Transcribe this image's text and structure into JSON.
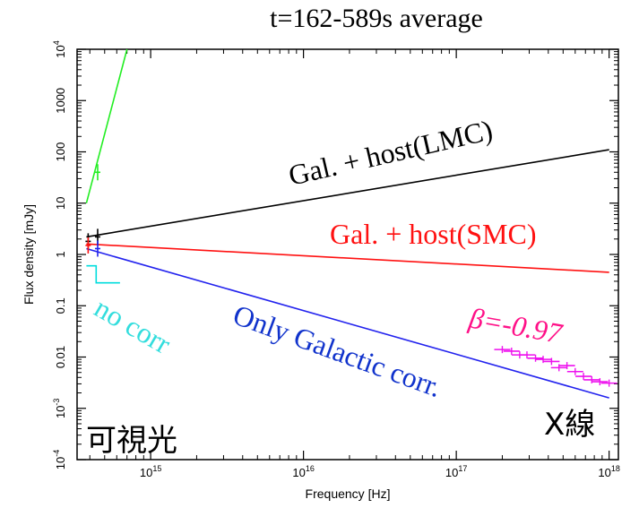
{
  "chart_data": {
    "type": "line",
    "title": "t=162-589s average",
    "xlabel": "Frequency [Hz]",
    "ylabel": "Flux density [mJy]",
    "xscale": "log",
    "yscale": "log",
    "xlim": [
      330000000000000.0,
      1.15e+18
    ],
    "ylim": [
      0.0001,
      10000
    ],
    "x_ticks": [
      {
        "value": 1000000000000000.0,
        "base": "10",
        "exp": "15"
      },
      {
        "value": 1e+16,
        "base": "10",
        "exp": "16"
      },
      {
        "value": 1e+17,
        "base": "10",
        "exp": "17"
      },
      {
        "value": 1e+18,
        "base": "10",
        "exp": "18"
      }
    ],
    "y_ticks": [
      {
        "value": 0.0001,
        "base": "10",
        "exp": "-4"
      },
      {
        "value": 0.001,
        "base": "10",
        "exp": "-3"
      },
      {
        "value": 0.01,
        "label": "0.01"
      },
      {
        "value": 0.1,
        "label": "0.1"
      },
      {
        "value": 1,
        "label": "1"
      },
      {
        "value": 10,
        "label": "10"
      },
      {
        "value": 100,
        "label": "100"
      },
      {
        "value": 1000,
        "label": "1000"
      },
      {
        "value": 10000,
        "base": "10",
        "exp": "4"
      }
    ],
    "series": [
      {
        "color": "#22ee22",
        "x": [
          380000000000000.0,
          700000000000000.0
        ],
        "y": [
          10,
          10000
        ]
      },
      {
        "color": "#000000",
        "x": [
          380000000000000.0,
          1e+18
        ],
        "y": [
          2.2,
          110
        ]
      },
      {
        "color": "#ff1111",
        "x": [
          380000000000000.0,
          1e+18
        ],
        "y": [
          1.6,
          0.45
        ]
      },
      {
        "color": "#2222ee",
        "x": [
          380000000000000.0,
          1e+18
        ],
        "y": [
          1.3,
          0.0016
        ]
      },
      {
        "color": "#00dddd",
        "x": [
          380000000000000.0,
          440000000000000.0,
          440000000000000.0,
          630000000000000.0
        ],
        "y": [
          0.6,
          0.6,
          0.28,
          0.28
        ]
      }
    ],
    "optical_points": [
      {
        "x": 390000000000000.0,
        "y": 1.8,
        "color": "#000000"
      },
      {
        "x": 450000000000000.0,
        "y": 2.2,
        "color": "#000000"
      },
      {
        "x": 450000000000000.0,
        "y": 40,
        "color": "#22ee22"
      },
      {
        "x": 390000000000000.0,
        "y": 1.5,
        "color": "#ff1111"
      },
      {
        "x": 450000000000000.0,
        "y": 1.3,
        "color": "#2222ee"
      }
    ],
    "xray_points": {
      "color": "#ee11ee",
      "x": [
        2e+17,
        2.3e+17,
        2.6e+17,
        2.9e+17,
        3.3e+17,
        3.7e+17,
        4.2e+17,
        4.7e+17,
        5.3e+17,
        6e+17,
        6.8e+17,
        7.7e+17,
        8.7e+17,
        1e+18
      ],
      "y": [
        0.014,
        0.013,
        0.011,
        0.011,
        0.0095,
        0.009,
        0.0082,
        0.0062,
        0.0068,
        0.0052,
        0.0042,
        0.0036,
        0.0033,
        0.0031
      ]
    },
    "annotations": [
      {
        "text": "Gal. + host(LMC)",
        "color": "#000000"
      },
      {
        "text": "Gal. + host(SMC)",
        "color": "#ff1111"
      },
      {
        "text": "Only Galactic corr.",
        "color": "#1133cc"
      },
      {
        "text": "no corr",
        "color": "#33dddd"
      },
      {
        "text": "β=-0.97",
        "color": "#ff1188"
      }
    ],
    "band_labels": {
      "optical": "可視光",
      "xray": "X線"
    }
  }
}
